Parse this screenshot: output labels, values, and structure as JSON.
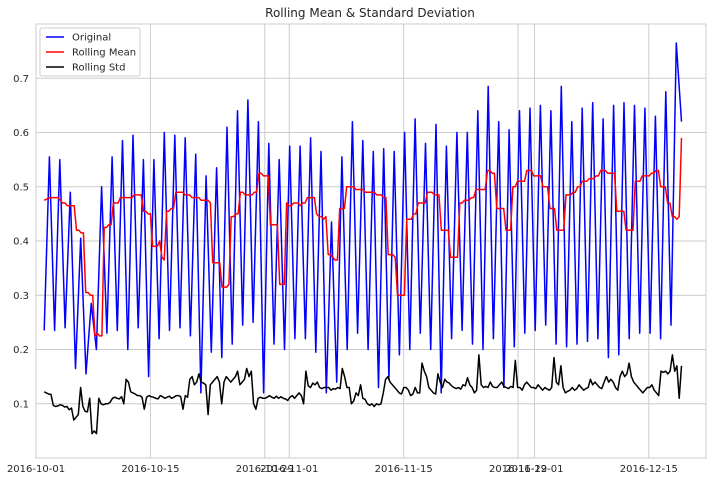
{
  "chart_data": {
    "type": "line",
    "title": "Rolling Mean & Standard Deviation",
    "xlabel": "",
    "ylabel": "",
    "x_start": "2016-10-02",
    "x_end": "2016-12-19",
    "xlim": [
      "2016-10-01",
      "2016-12-22"
    ],
    "ylim": [
      0.0,
      0.8
    ],
    "grid": true,
    "legend_position": "top-left",
    "x_ticks": [
      {
        "date": "2016-10-01",
        "label": "2016-10-01"
      },
      {
        "date": "2016-10-15",
        "label": "2016-10-15"
      },
      {
        "date": "2016-10-29",
        "label": "2016-10-29"
      },
      {
        "date": "2016-11-01",
        "label": "2016-11-01"
      },
      {
        "date": "2016-11-15",
        "label": "2016-11-15"
      },
      {
        "date": "2016-11-29",
        "label": "2016-11-29"
      },
      {
        "date": "2016-12-01",
        "label": "2016-12-01"
      },
      {
        "date": "2016-12-15",
        "label": "2016-12-15"
      }
    ],
    "y_ticks": [
      {
        "value": 0.1,
        "label": "0.1"
      },
      {
        "value": 0.2,
        "label": "0.2"
      },
      {
        "value": 0.3,
        "label": "0.3"
      },
      {
        "value": 0.4,
        "label": "0.4"
      },
      {
        "value": 0.5,
        "label": "0.5"
      },
      {
        "value": 0.6,
        "label": "0.6"
      },
      {
        "value": 0.7,
        "label": "0.7"
      }
    ],
    "series": [
      {
        "name": "Original",
        "color": "#0000ff",
        "values": [
          0.235,
          0.555,
          0.235,
          0.55,
          0.24,
          0.49,
          0.165,
          0.405,
          0.155,
          0.285,
          0.2,
          0.5,
          0.23,
          0.555,
          0.235,
          0.585,
          0.2,
          0.595,
          0.24,
          0.55,
          0.15,
          0.55,
          0.22,
          0.6,
          0.235,
          0.595,
          0.24,
          0.59,
          0.225,
          0.56,
          0.12,
          0.52,
          0.195,
          0.535,
          0.185,
          0.61,
          0.21,
          0.64,
          0.245,
          0.66,
          0.25,
          0.62,
          0.12,
          0.58,
          0.21,
          0.55,
          0.2,
          0.575,
          0.22,
          0.575,
          0.22,
          0.59,
          0.195,
          0.565,
          0.12,
          0.435,
          0.14,
          0.555,
          0.2,
          0.62,
          0.23,
          0.585,
          0.2,
          0.565,
          0.13,
          0.57,
          0.145,
          0.565,
          0.19,
          0.6,
          0.2,
          0.625,
          0.23,
          0.58,
          0.2,
          0.615,
          0.12,
          0.575,
          0.22,
          0.6,
          0.235,
          0.6,
          0.21,
          0.64,
          0.2,
          0.685,
          0.22,
          0.62,
          0.13,
          0.605,
          0.205,
          0.64,
          0.23,
          0.645,
          0.235,
          0.65,
          0.245,
          0.64,
          0.21,
          0.685,
          0.205,
          0.62,
          0.21,
          0.645,
          0.215,
          0.655,
          0.22,
          0.625,
          0.185,
          0.65,
          0.19,
          0.655,
          0.22,
          0.65,
          0.23,
          0.645,
          0.23,
          0.63,
          0.22,
          0.675,
          0.245,
          0.765,
          0.62
        ]
      },
      {
        "name": "Rolling Mean",
        "color": "#ff0000",
        "values": [
          0.475,
          0.477,
          0.479,
          0.48,
          0.48,
          0.48,
          0.48,
          0.475,
          0.47,
          0.47,
          0.465,
          0.465,
          0.465,
          0.465,
          0.42,
          0.42,
          0.415,
          0.415,
          0.305,
          0.305,
          0.3,
          0.3,
          0.225,
          0.23,
          0.225,
          0.225,
          0.425,
          0.425,
          0.43,
          0.43,
          0.47,
          0.47,
          0.47,
          0.48,
          0.48,
          0.48,
          0.48,
          0.48,
          0.48,
          0.485,
          0.485,
          0.485,
          0.485,
          0.455,
          0.455,
          0.45,
          0.45,
          0.39,
          0.39,
          0.39,
          0.4,
          0.37,
          0.365,
          0.455,
          0.455,
          0.46,
          0.46,
          0.49,
          0.49,
          0.49,
          0.49,
          0.485,
          0.485,
          0.485,
          0.48,
          0.48,
          0.48,
          0.48,
          0.475,
          0.475,
          0.475,
          0.475,
          0.47,
          0.36,
          0.36,
          0.36,
          0.36,
          0.315,
          0.315,
          0.315,
          0.32,
          0.445,
          0.445,
          0.45,
          0.45,
          0.49,
          0.49,
          0.485,
          0.485,
          0.485,
          0.485,
          0.49,
          0.49,
          0.525,
          0.525,
          0.52,
          0.52,
          0.52,
          0.43,
          0.43,
          0.43,
          0.43,
          0.32,
          0.32,
          0.32,
          0.47,
          0.465,
          0.465,
          0.47,
          0.47,
          0.47,
          0.465,
          0.47,
          0.47,
          0.48,
          0.48,
          0.48,
          0.48,
          0.45,
          0.445,
          0.445,
          0.44,
          0.445,
          0.375,
          0.375,
          0.37,
          0.365,
          0.365,
          0.46,
          0.46,
          0.46,
          0.5,
          0.5,
          0.5,
          0.5,
          0.495,
          0.495,
          0.495,
          0.495,
          0.49,
          0.49,
          0.49,
          0.49,
          0.49,
          0.485,
          0.485,
          0.485,
          0.48,
          0.48,
          0.375,
          0.375,
          0.375,
          0.37,
          0.3,
          0.3,
          0.3,
          0.3,
          0.44,
          0.44,
          0.44,
          0.45,
          0.45,
          0.47,
          0.47,
          0.47,
          0.47,
          0.49,
          0.49,
          0.49,
          0.485,
          0.485,
          0.485,
          0.42,
          0.42,
          0.42,
          0.42,
          0.37,
          0.37,
          0.37,
          0.37,
          0.47,
          0.47,
          0.475,
          0.475,
          0.475,
          0.48,
          0.48,
          0.495,
          0.495,
          0.495,
          0.495,
          0.495,
          0.53,
          0.53,
          0.525,
          0.525,
          0.46,
          0.46,
          0.46,
          0.46,
          0.42,
          0.42,
          0.42,
          0.5,
          0.5,
          0.51,
          0.51,
          0.51,
          0.51,
          0.53,
          0.53,
          0.53,
          0.52,
          0.52,
          0.52,
          0.52,
          0.5,
          0.5,
          0.5,
          0.46,
          0.46,
          0.46,
          0.42,
          0.42,
          0.42,
          0.42,
          0.485,
          0.485,
          0.485,
          0.49,
          0.49,
          0.5,
          0.5,
          0.51,
          0.51,
          0.51,
          0.515,
          0.515,
          0.515,
          0.52,
          0.52,
          0.53,
          0.53,
          0.53,
          0.525,
          0.525,
          0.525,
          0.525,
          0.455,
          0.455,
          0.455,
          0.455,
          0.42,
          0.42,
          0.42,
          0.42,
          0.51,
          0.51,
          0.51,
          0.52,
          0.52,
          0.52,
          0.52,
          0.525,
          0.525,
          0.53,
          0.53,
          0.5,
          0.5,
          0.5,
          0.47,
          0.47,
          0.445,
          0.445,
          0.44,
          0.445,
          0.59
        ]
      },
      {
        "name": "Rolling Std",
        "color": "#000000",
        "values": [
          0.122,
          0.12,
          0.118,
          0.117,
          0.097,
          0.095,
          0.096,
          0.098,
          0.097,
          0.094,
          0.095,
          0.089,
          0.092,
          0.07,
          0.075,
          0.08,
          0.13,
          0.095,
          0.086,
          0.085,
          0.11,
          0.045,
          0.05,
          0.045,
          0.11,
          0.1,
          0.098,
          0.1,
          0.1,
          0.103,
          0.11,
          0.112,
          0.11,
          0.109,
          0.113,
          0.1,
          0.145,
          0.14,
          0.122,
          0.12,
          0.118,
          0.115,
          0.115,
          0.112,
          0.09,
          0.112,
          0.115,
          0.113,
          0.112,
          0.11,
          0.109,
          0.115,
          0.113,
          0.11,
          0.112,
          0.114,
          0.11,
          0.112,
          0.115,
          0.115,
          0.113,
          0.09,
          0.115,
          0.112,
          0.145,
          0.15,
          0.135,
          0.14,
          0.155,
          0.14,
          0.138,
          0.135,
          0.08,
          0.135,
          0.14,
          0.145,
          0.15,
          0.14,
          0.1,
          0.14,
          0.15,
          0.145,
          0.14,
          0.145,
          0.15,
          0.16,
          0.135,
          0.14,
          0.145,
          0.165,
          0.15,
          0.16,
          0.1,
          0.09,
          0.11,
          0.112,
          0.11,
          0.11,
          0.112,
          0.115,
          0.112,
          0.11,
          0.114,
          0.11,
          0.113,
          0.11,
          0.109,
          0.106,
          0.112,
          0.115,
          0.11,
          0.115,
          0.12,
          0.115,
          0.1,
          0.16,
          0.133,
          0.13,
          0.138,
          0.135,
          0.14,
          0.13,
          0.128,
          0.13,
          0.13,
          0.13,
          0.125,
          0.128,
          0.127,
          0.13,
          0.128,
          0.165,
          0.15,
          0.13,
          0.13,
          0.1,
          0.105,
          0.12,
          0.115,
          0.135,
          0.11,
          0.108,
          0.1,
          0.097,
          0.1,
          0.095,
          0.1,
          0.098,
          0.1,
          0.12,
          0.145,
          0.15,
          0.14,
          0.135,
          0.13,
          0.125,
          0.12,
          0.118,
          0.13,
          0.13,
          0.125,
          0.115,
          0.118,
          0.13,
          0.12,
          0.12,
          0.175,
          0.16,
          0.15,
          0.13,
          0.125,
          0.12,
          0.118,
          0.155,
          0.14,
          0.13,
          0.145,
          0.14,
          0.138,
          0.133,
          0.13,
          0.128,
          0.13,
          0.127,
          0.135,
          0.133,
          0.148,
          0.135,
          0.13,
          0.12,
          0.125,
          0.19,
          0.135,
          0.13,
          0.132,
          0.13,
          0.14,
          0.132,
          0.13,
          0.13,
          0.135,
          0.14,
          0.132,
          0.13,
          0.128,
          0.132,
          0.13,
          0.18,
          0.13,
          0.13,
          0.125,
          0.135,
          0.14,
          0.135,
          0.13,
          0.13,
          0.128,
          0.135,
          0.13,
          0.125,
          0.13,
          0.127,
          0.125,
          0.13,
          0.185,
          0.14,
          0.135,
          0.17,
          0.13,
          0.12,
          0.123,
          0.125,
          0.13,
          0.125,
          0.128,
          0.135,
          0.13,
          0.125,
          0.128,
          0.13,
          0.145,
          0.135,
          0.14,
          0.135,
          0.13,
          0.128,
          0.14,
          0.15,
          0.14,
          0.145,
          0.14,
          0.13,
          0.125,
          0.15,
          0.16,
          0.15,
          0.155,
          0.175,
          0.15,
          0.14,
          0.135,
          0.13,
          0.125,
          0.12,
          0.125,
          0.13,
          0.13,
          0.135,
          0.125,
          0.12,
          0.115,
          0.16,
          0.158,
          0.16,
          0.155,
          0.16,
          0.19,
          0.16,
          0.17,
          0.11,
          0.17
        ]
      }
    ]
  }
}
